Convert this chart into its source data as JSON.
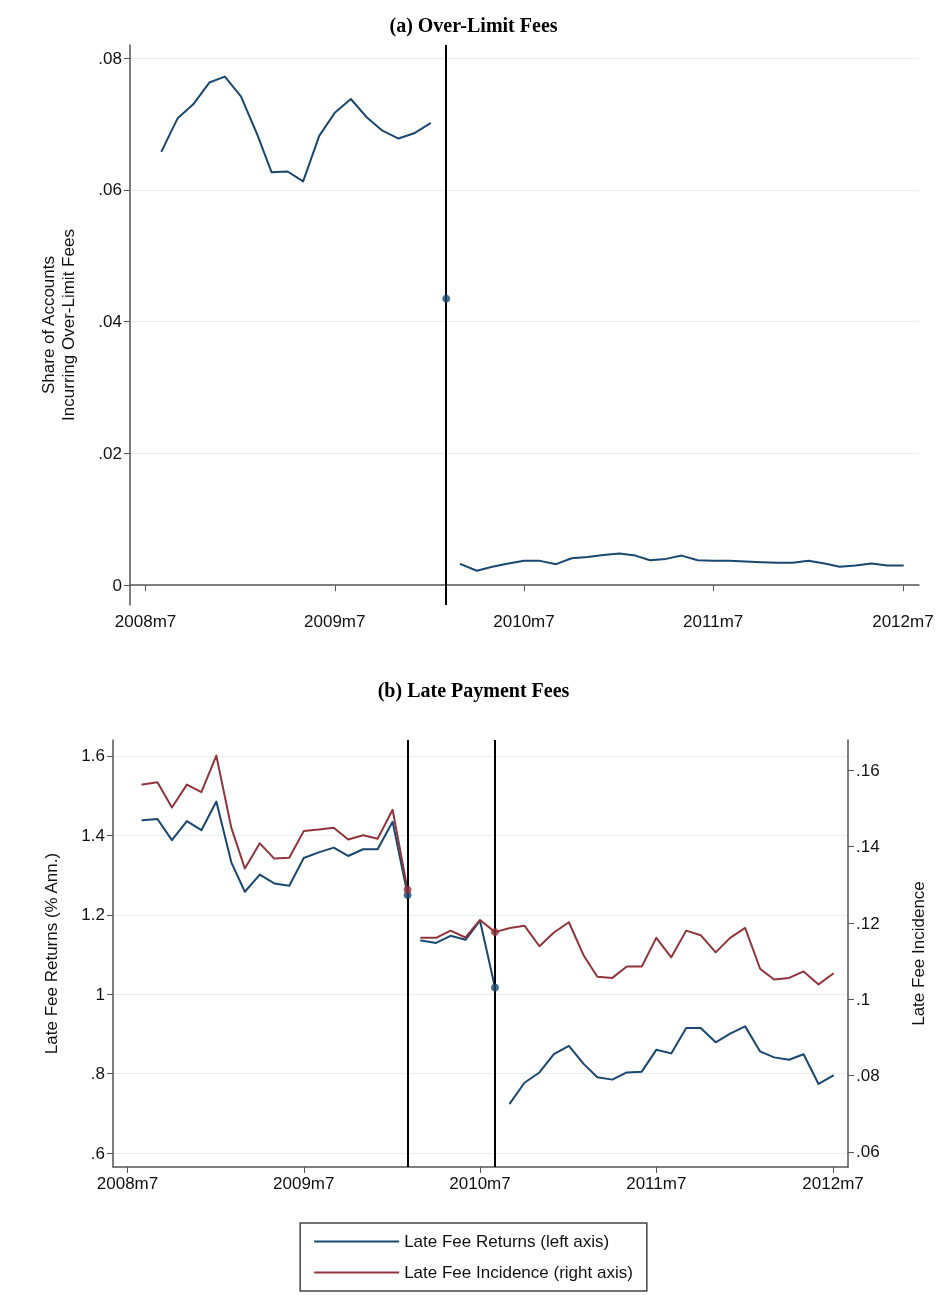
{
  "chart_data": [
    {
      "type": "line",
      "title": "(a) Over-Limit Fees",
      "ylabel": "Share of Accounts\nIncurring Over-Limit Fees",
      "xlim": [
        "2008-06",
        "2012-08"
      ],
      "xticks": [
        {
          "value": "2008-07",
          "label": "2008m7"
        },
        {
          "value": "2009-07",
          "label": "2009m7"
        },
        {
          "value": "2010-07",
          "label": "2010m7"
        },
        {
          "value": "2011-07",
          "label": "2011m7"
        },
        {
          "value": "2012-07",
          "label": "2012m7"
        }
      ],
      "ylim": [
        -0.003,
        0.082
      ],
      "yticks": [
        0,
        {
          "value": 0.02,
          "label": ".02"
        },
        {
          "value": 0.04,
          "label": ".04"
        },
        {
          "value": 0.06,
          "label": ".06"
        },
        {
          "value": 0.08,
          "label": ".08"
        }
      ],
      "grid": "y",
      "legend": false,
      "marker": "none",
      "line_style": "solid",
      "ref_lines": [
        {
          "axis": "x",
          "value": "2010-02",
          "color": "#000000"
        }
      ],
      "series": [
        {
          "color": "#1a476f",
          "x": [
            "2008-08",
            "2008-09",
            "2008-10",
            "2008-11",
            "2008-12",
            "2009-01",
            "2009-02",
            "2009-03",
            "2009-04",
            "2009-05",
            "2009-06",
            "2009-07",
            "2009-08",
            "2009-09",
            "2009-10",
            "2009-11",
            "2009-12",
            "2010-01",
            "2010-02",
            "2010-03",
            "2010-04",
            "2010-05",
            "2010-06",
            "2010-07",
            "2010-08",
            "2010-09",
            "2010-10",
            "2010-11",
            "2010-12",
            "2011-01",
            "2011-02",
            "2011-03",
            "2011-04",
            "2011-05",
            "2011-06",
            "2011-07",
            "2011-08",
            "2011-09",
            "2011-10",
            "2011-11",
            "2011-12",
            "2012-01",
            "2012-02",
            "2012-03",
            "2012-04",
            "2012-05",
            "2012-06",
            "2012-07"
          ],
          "values": [
            0.0659,
            0.0709,
            0.073,
            0.0763,
            0.0772,
            0.0742,
            0.0685,
            0.0627,
            0.0628,
            0.0613,
            0.0682,
            0.0717,
            0.0738,
            0.071,
            0.069,
            0.0678,
            0.0686,
            0.0701,
            null,
            0.0032,
            0.0022,
            0.0028,
            0.0033,
            0.0037,
            0.0037,
            0.0032,
            0.0041,
            0.0043,
            0.0046,
            0.0048,
            0.0045,
            0.0038,
            0.004,
            0.0045,
            0.0038,
            0.0037,
            0.0037,
            0.0036,
            0.0035,
            0.0034,
            0.0034,
            0.0037,
            0.0033,
            0.0028,
            0.003,
            0.0033,
            0.003,
            0.003
          ]
        },
        {
          "type": "scatter",
          "marker": "circle",
          "color": "#1a476f",
          "x": [
            "2010-02"
          ],
          "values": [
            0.0435
          ]
        }
      ]
    },
    {
      "type": "line",
      "title": "(b) Late Payment Fees",
      "ylabel": "Late Fee Returns (% Ann.)",
      "y2label": "Late Fee Incidence",
      "xlim": [
        "2008-06",
        "2012-08"
      ],
      "xticks": [
        {
          "value": "2008-07",
          "label": "2008m7"
        },
        {
          "value": "2009-07",
          "label": "2009m7"
        },
        {
          "value": "2010-07",
          "label": "2010m7"
        },
        {
          "value": "2011-07",
          "label": "2011m7"
        },
        {
          "value": "2012-07",
          "label": "2012m7"
        }
      ],
      "ylim": [
        0.565,
        1.64
      ],
      "yticks": [
        {
          "value": 0.6,
          "label": ".6"
        },
        {
          "value": 0.8,
          "label": ".8"
        },
        1,
        1.2,
        1.4,
        1.6
      ],
      "y2lim": [
        0.056,
        0.168
      ],
      "y2ticks": [
        {
          "value": 0.06,
          "label": ".06"
        },
        {
          "value": 0.08,
          "label": ".08"
        },
        {
          "value": 0.1,
          "label": ".1"
        },
        {
          "value": 0.12,
          "label": ".12"
        },
        {
          "value": 0.14,
          "label": ".14"
        },
        {
          "value": 0.16,
          "label": ".16"
        }
      ],
      "grid": "y",
      "legend": "bottom",
      "marker": "none",
      "line_style": "solid",
      "ref_lines": [
        {
          "axis": "x",
          "value": "2010-02",
          "color": "#000000"
        },
        {
          "axis": "x",
          "value": "2010-08",
          "color": "#000000"
        }
      ],
      "series": [
        {
          "name": "Late Fee Returns (left axis)",
          "color": "#1a476f",
          "x": [
            "2008-08",
            "2008-09",
            "2008-10",
            "2008-11",
            "2008-12",
            "2009-01",
            "2009-02",
            "2009-03",
            "2009-04",
            "2009-05",
            "2009-06",
            "2009-07",
            "2009-08",
            "2009-09",
            "2009-10",
            "2009-11",
            "2009-12",
            "2010-01",
            "2010-02"
          ],
          "values": [
            1.438,
            1.441,
            1.388,
            1.436,
            1.413,
            1.485,
            1.332,
            1.258,
            1.301,
            1.279,
            1.273,
            1.343,
            1.357,
            1.369,
            1.348,
            1.365,
            1.365,
            1.434,
            1.25
          ]
        },
        {
          "color": "#1a476f",
          "x": [
            "2010-03",
            "2010-04",
            "2010-05",
            "2010-06",
            "2010-07",
            "2010-08"
          ],
          "values": [
            1.135,
            1.129,
            1.147,
            1.137,
            1.185,
            1.017
          ]
        },
        {
          "color": "#1a476f",
          "x": [
            "2010-09",
            "2010-10",
            "2010-11",
            "2010-12",
            "2011-01",
            "2011-02",
            "2011-03",
            "2011-04",
            "2011-05",
            "2011-06",
            "2011-07",
            "2011-08",
            "2011-09",
            "2011-10",
            "2011-11",
            "2011-12",
            "2012-01",
            "2012-02",
            "2012-03",
            "2012-04",
            "2012-05",
            "2012-06",
            "2012-07"
          ],
          "values": [
            0.725,
            0.777,
            0.803,
            0.849,
            0.87,
            0.824,
            0.791,
            0.785,
            0.803,
            0.805,
            0.86,
            0.851,
            0.915,
            0.915,
            0.879,
            0.901,
            0.919,
            0.856,
            0.841,
            0.835,
            0.849,
            0.774,
            0.795
          ]
        },
        {
          "name": "Late Fee Incidence (right axis)",
          "axis": "y2",
          "color": "#90353b",
          "x": [
            "2008-08",
            "2008-09",
            "2008-10",
            "2008-11",
            "2008-12",
            "2009-01",
            "2009-02",
            "2009-03",
            "2009-04",
            "2009-05",
            "2009-06",
            "2009-07",
            "2009-08",
            "2009-09",
            "2009-10",
            "2009-11",
            "2009-12",
            "2010-01",
            "2010-02"
          ],
          "values": [
            0.1563,
            0.1569,
            0.1503,
            0.1563,
            0.1543,
            0.1639,
            0.145,
            0.1343,
            0.1409,
            0.1369,
            0.1371,
            0.1441,
            0.1445,
            0.145,
            0.1419,
            0.143,
            0.1421,
            0.1497,
            0.1287
          ]
        },
        {
          "axis": "y2",
          "color": "#90353b",
          "x": [
            "2010-03",
            "2010-04",
            "2010-05",
            "2010-06",
            "2010-07",
            "2010-08",
            "2010-09",
            "2010-10",
            "2010-11",
            "2010-12",
            "2011-01",
            "2011-02",
            "2011-03",
            "2011-04",
            "2011-05",
            "2011-06",
            "2011-07",
            "2011-08",
            "2011-09",
            "2011-10",
            "2011-11",
            "2011-12",
            "2012-01",
            "2012-02",
            "2012-03",
            "2012-04",
            "2012-05",
            "2012-06",
            "2012-07"
          ],
          "values": [
            0.1161,
            0.1161,
            0.118,
            0.1162,
            0.1208,
            0.1176,
            0.1187,
            0.1193,
            0.1139,
            0.1175,
            0.1202,
            0.1114,
            0.1059,
            0.1056,
            0.1086,
            0.1086,
            0.1161,
            0.111,
            0.118,
            0.1168,
            0.1123,
            0.1161,
            0.1187,
            0.108,
            0.1052,
            0.1056,
            0.1073,
            0.1039,
            0.1067
          ]
        },
        {
          "type": "scatter",
          "marker": "circle",
          "color": "#1a476f",
          "x": [
            "2010-02",
            "2010-08"
          ],
          "values": [
            1.25,
            1.017
          ]
        },
        {
          "type": "scatter",
          "marker": "circle",
          "axis": "y2",
          "color": "#90353b",
          "x": [
            "2010-02",
            "2010-08"
          ],
          "values": [
            0.1287,
            0.1176
          ]
        }
      ]
    }
  ]
}
